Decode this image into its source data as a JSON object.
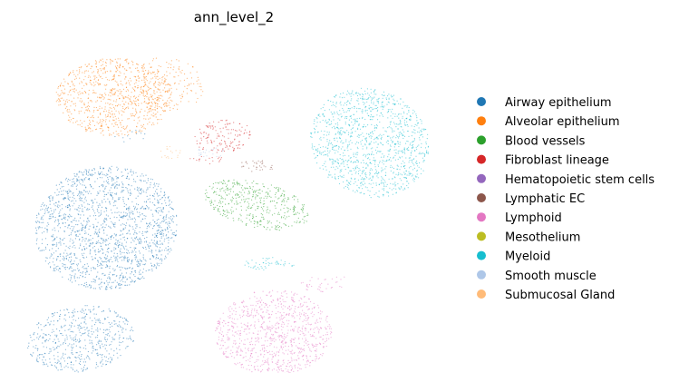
{
  "chart_data": {
    "type": "scatter",
    "title": "ann_level_2",
    "xlabel": "",
    "ylabel": "",
    "axes_visible": false,
    "grid": false,
    "legend_placement": "right",
    "series": [
      {
        "name": "Airway epithelium",
        "color": "#1f77b4",
        "clusters": [
          {
            "cx": 0.16,
            "cy": -0.1,
            "rx": 0.17,
            "ry": 0.19,
            "rot": -10,
            "density": 0.9
          },
          {
            "cx": 0.1,
            "cy": -0.44,
            "rx": 0.13,
            "ry": 0.1,
            "rot": 15,
            "density": 0.7
          },
          {
            "cx": 0.22,
            "cy": 0.18,
            "rx": 0.04,
            "ry": 0.02,
            "rot": 0,
            "density": 0.25
          }
        ]
      },
      {
        "name": "Alveolar epithelium",
        "color": "#ff7f0e",
        "clusters": [
          {
            "cx": 0.18,
            "cy": 0.3,
            "rx": 0.14,
            "ry": 0.12,
            "rot": 0,
            "density": 0.85
          },
          {
            "cx": 0.31,
            "cy": 0.34,
            "rx": 0.09,
            "ry": 0.08,
            "rot": -30,
            "density": 0.35
          }
        ]
      },
      {
        "name": "Blood vessels",
        "color": "#2ca02c",
        "clusters": [
          {
            "cx": 0.52,
            "cy": -0.03,
            "rx": 0.13,
            "ry": 0.07,
            "rot": -20,
            "density": 0.8
          }
        ]
      },
      {
        "name": "Fibroblast lineage",
        "color": "#d62728",
        "clusters": [
          {
            "cx": 0.44,
            "cy": 0.18,
            "rx": 0.07,
            "ry": 0.05,
            "rot": 15,
            "density": 0.7
          },
          {
            "cx": 0.4,
            "cy": 0.11,
            "rx": 0.04,
            "ry": 0.015,
            "rot": 0,
            "density": 0.5
          }
        ]
      },
      {
        "name": "Hematopoietic stem cells",
        "color": "#9467bd",
        "clusters": []
      },
      {
        "name": "Lymphatic EC",
        "color": "#8c564b",
        "clusters": [
          {
            "cx": 0.52,
            "cy": 0.09,
            "rx": 0.04,
            "ry": 0.02,
            "rot": -10,
            "density": 0.7
          }
        ]
      },
      {
        "name": "Lymphoid",
        "color": "#e377c2",
        "clusters": [
          {
            "cx": 0.56,
            "cy": -0.42,
            "rx": 0.14,
            "ry": 0.13,
            "rot": 0,
            "density": 0.85
          },
          {
            "cx": 0.68,
            "cy": -0.27,
            "rx": 0.06,
            "ry": 0.025,
            "rot": 10,
            "density": 0.4
          }
        ]
      },
      {
        "name": "Mesothelium",
        "color": "#bcbd22",
        "clusters": []
      },
      {
        "name": "Myeloid",
        "color": "#17becf",
        "clusters": [
          {
            "cx": 0.79,
            "cy": 0.16,
            "rx": 0.14,
            "ry": 0.17,
            "rot": 15,
            "density": 0.85
          },
          {
            "cx": 0.55,
            "cy": -0.21,
            "rx": 0.06,
            "ry": 0.02,
            "rot": 0,
            "density": 0.7
          }
        ]
      },
      {
        "name": "Smooth muscle",
        "color": "#aec7e8",
        "clusters": [
          {
            "cx": 0.41,
            "cy": 0.13,
            "rx": 0.04,
            "ry": 0.015,
            "rot": 0,
            "density": 0.6
          }
        ]
      },
      {
        "name": "Submucosal Gland",
        "color": "#ffbb78",
        "clusters": [
          {
            "cx": 0.31,
            "cy": 0.13,
            "rx": 0.03,
            "ry": 0.02,
            "rot": 0,
            "density": 0.5
          }
        ]
      }
    ]
  }
}
